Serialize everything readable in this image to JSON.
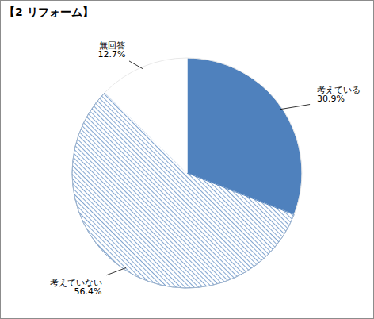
{
  "chart_data": {
    "type": "pie",
    "title": "【2 リフォーム】",
    "categories": [
      "考えている",
      "考えていない",
      "無回答"
    ],
    "values": [
      30.9,
      56.4,
      12.7
    ],
    "value_labels": [
      "30.9%",
      "56.4%",
      "12.7%"
    ],
    "colors": [
      "#4f81bd",
      "#4f81bd",
      "#ffffff"
    ],
    "data_labels": true
  }
}
